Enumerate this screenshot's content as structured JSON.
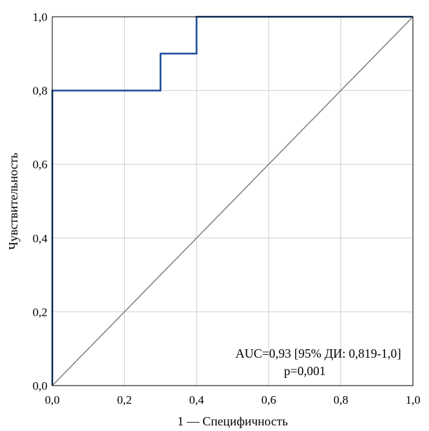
{
  "chart_data": {
    "type": "line",
    "xlabel": "1 — Специфичность",
    "ylabel": "Чувствительность",
    "xlim": [
      0,
      1
    ],
    "ylim": [
      0,
      1
    ],
    "x_ticks": [
      "0,0",
      "0,2",
      "0,4",
      "0,6",
      "0,8",
      "1,0"
    ],
    "y_ticks": [
      "0,0",
      "0,2",
      "0,4",
      "0,6",
      "0,8",
      "1,0"
    ],
    "grid": true,
    "series": [
      {
        "color": "#1f4e9a",
        "x": [
          0,
          0,
          0.3,
          0.3,
          0.4,
          0.4,
          1
        ],
        "y": [
          0,
          0.8,
          0.8,
          0.9,
          0.9,
          1.0,
          1.0
        ]
      },
      {
        "color": "#808080",
        "x": [
          0,
          1
        ],
        "y": [
          0,
          1
        ]
      }
    ],
    "annotations": [
      "AUC=0,93 [95% ДИ: 0,819-1,0]",
      "p=0,001"
    ]
  }
}
